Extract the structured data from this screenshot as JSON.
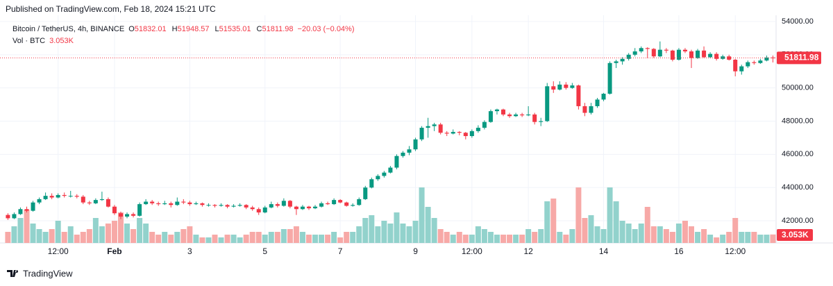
{
  "header": {
    "published": "Published on TradingView.com, Feb 18, 2024 15:21 UTC",
    "footer_brand": "TradingView"
  },
  "chart_data": {
    "type": "candlestick",
    "title": "Bitcoin / TetherUS, 4h, BINANCE",
    "ohlc_letters": [
      "O",
      "H",
      "L",
      "C"
    ],
    "change_label": "−20.03 (−0.04%)",
    "up_color": "#089981",
    "down_color": "#f23645",
    "vol_up_color": "#92d2cc",
    "vol_down_color": "#f7a9a7",
    "grid": true,
    "ylim": [
      40662,
      54376
    ],
    "yticks": [
      {
        "value": 42000,
        "label": "42000.00"
      },
      {
        "value": 44000,
        "label": "44000.00"
      },
      {
        "value": 46000,
        "label": "46000.00"
      },
      {
        "value": 48000,
        "label": "48000.00"
      },
      {
        "value": 50000,
        "label": "50000.00"
      },
      {
        "value": 52000,
        "label": "52000.00"
      },
      {
        "value": 54000,
        "label": "54000.00"
      }
    ],
    "categories": [
      null,
      null,
      null,
      null,
      null,
      null,
      null,
      null,
      "12:00",
      null,
      null,
      null,
      null,
      null,
      null,
      null,
      null,
      "Feb",
      null,
      null,
      null,
      null,
      null,
      null,
      null,
      null,
      null,
      null,
      null,
      "3",
      null,
      null,
      null,
      null,
      null,
      null,
      null,
      null,
      null,
      null,
      null,
      "5",
      null,
      null,
      null,
      null,
      null,
      null,
      null,
      null,
      null,
      null,
      null,
      "7",
      null,
      null,
      null,
      null,
      null,
      null,
      null,
      null,
      null,
      null,
      null,
      "9",
      null,
      null,
      null,
      null,
      null,
      null,
      null,
      null,
      "12:00",
      null,
      null,
      null,
      null,
      null,
      null,
      null,
      null,
      "12",
      null,
      null,
      null,
      null,
      null,
      null,
      null,
      null,
      null,
      null,
      null,
      "14",
      null,
      null,
      null,
      null,
      null,
      null,
      null,
      null,
      null,
      null,
      null,
      "16",
      null,
      null,
      null,
      null,
      null,
      null,
      null,
      null,
      "12:00",
      null,
      null,
      null,
      null,
      null,
      null
    ],
    "candles": [
      [
        42350,
        42450,
        42050,
        42150
      ],
      [
        42150,
        42500,
        42100,
        42400
      ],
      [
        42400,
        42800,
        42350,
        42700
      ],
      [
        42700,
        42850,
        42500,
        42600
      ],
      [
        42600,
        43200,
        42550,
        43100
      ],
      [
        43100,
        43400,
        43000,
        43300
      ],
      [
        43300,
        43700,
        43250,
        43500
      ],
      [
        43500,
        43650,
        43300,
        43400
      ],
      [
        43400,
        43650,
        43350,
        43550
      ],
      [
        43550,
        43700,
        43400,
        43500
      ],
      [
        43500,
        43800,
        43400,
        43500
      ],
      [
        43500,
        43600,
        43350,
        43450
      ],
      [
        43450,
        43550,
        43000,
        43100
      ],
      [
        43100,
        43200,
        42950,
        43050
      ],
      [
        43050,
        43350,
        43000,
        43250
      ],
      [
        43250,
        43750,
        43200,
        43300
      ],
      [
        43300,
        43400,
        42800,
        42850
      ],
      [
        42850,
        42950,
        42350,
        42450
      ],
      [
        42450,
        42550,
        42100,
        42250
      ],
      [
        42250,
        42500,
        42150,
        42400
      ],
      [
        42400,
        42500,
        42200,
        42300
      ],
      [
        42300,
        43100,
        42250,
        43000
      ],
      [
        43000,
        43300,
        42950,
        43150
      ],
      [
        43150,
        43250,
        42950,
        43050
      ],
      [
        43050,
        43150,
        42900,
        43000
      ],
      [
        43000,
        43200,
        42950,
        43050
      ],
      [
        43050,
        43150,
        42800,
        42950
      ],
      [
        42950,
        43400,
        42900,
        43150
      ],
      [
        43150,
        43300,
        43000,
        43100
      ],
      [
        43100,
        43200,
        42900,
        43000
      ],
      [
        43000,
        43150,
        42950,
        43050
      ],
      [
        43050,
        43100,
        42850,
        42950
      ],
      [
        42950,
        43050,
        42850,
        42950
      ],
      [
        42950,
        43000,
        42800,
        42900
      ],
      [
        42900,
        43050,
        42850,
        42950
      ],
      [
        42950,
        43000,
        42750,
        42850
      ],
      [
        42850,
        43000,
        42800,
        42900
      ],
      [
        42900,
        43050,
        42850,
        42950
      ],
      [
        42950,
        43000,
        42700,
        42800
      ],
      [
        42800,
        42900,
        42600,
        42700
      ],
      [
        42700,
        42800,
        42350,
        42500
      ],
      [
        42500,
        42900,
        42450,
        42800
      ],
      [
        42800,
        43150,
        42750,
        43000
      ],
      [
        43000,
        43100,
        42800,
        42900
      ],
      [
        42900,
        43350,
        42850,
        43200
      ],
      [
        43200,
        43250,
        42750,
        42850
      ],
      [
        42850,
        42900,
        42350,
        42700
      ],
      [
        42700,
        42950,
        42650,
        42850
      ],
      [
        42850,
        42900,
        42650,
        42750
      ],
      [
        42750,
        42950,
        42700,
        42850
      ],
      [
        42850,
        43150,
        42800,
        43050
      ],
      [
        43050,
        43150,
        42950,
        43000
      ],
      [
        43000,
        43350,
        42950,
        43250
      ],
      [
        43250,
        43300,
        43050,
        43100
      ],
      [
        43100,
        43150,
        42850,
        42900
      ],
      [
        42900,
        43050,
        42850,
        42950
      ],
      [
        42950,
        43400,
        42900,
        43300
      ],
      [
        43300,
        44100,
        43250,
        44000
      ],
      [
        44000,
        44600,
        43950,
        44500
      ],
      [
        44500,
        44800,
        44400,
        44700
      ],
      [
        44700,
        45000,
        44600,
        44900
      ],
      [
        44900,
        45300,
        44850,
        45200
      ],
      [
        45200,
        46000,
        45100,
        45900
      ],
      [
        45900,
        46200,
        45800,
        46100
      ],
      [
        46100,
        46500,
        45950,
        46300
      ],
      [
        46300,
        47000,
        46200,
        46900
      ],
      [
        46900,
        47700,
        46800,
        47600
      ],
      [
        47600,
        48200,
        47000,
        47700
      ],
      [
        47700,
        47900,
        47400,
        47800
      ],
      [
        47800,
        47900,
        47200,
        47300
      ],
      [
        47300,
        47400,
        47100,
        47250
      ],
      [
        47250,
        47500,
        47200,
        47350
      ],
      [
        47350,
        47400,
        47150,
        47300
      ],
      [
        47300,
        47350,
        46900,
        47100
      ],
      [
        47100,
        47500,
        47000,
        47400
      ],
      [
        47400,
        47750,
        47300,
        47600
      ],
      [
        47600,
        48050,
        47500,
        47950
      ],
      [
        47950,
        48700,
        47900,
        48600
      ],
      [
        48600,
        48750,
        48400,
        48700
      ],
      [
        48700,
        48750,
        48300,
        48400
      ],
      [
        48400,
        48500,
        48200,
        48300
      ],
      [
        48300,
        48500,
        48250,
        48400
      ],
      [
        48400,
        48500,
        48250,
        48350
      ],
      [
        48350,
        48900,
        48300,
        48400
      ],
      [
        48400,
        48500,
        47800,
        47950
      ],
      [
        47950,
        48200,
        47700,
        48000
      ],
      [
        48000,
        50300,
        47950,
        50100
      ],
      [
        50100,
        50400,
        49700,
        49900
      ],
      [
        49900,
        50400,
        49850,
        50200
      ],
      [
        50200,
        50350,
        49900,
        50000
      ],
      [
        50000,
        50300,
        49950,
        50150
      ],
      [
        50150,
        50200,
        48700,
        48900
      ],
      [
        48900,
        49100,
        48300,
        48500
      ],
      [
        48500,
        49100,
        48400,
        48900
      ],
      [
        48900,
        49400,
        48800,
        49300
      ],
      [
        49300,
        49700,
        49200,
        49650
      ],
      [
        49650,
        51600,
        49600,
        51500
      ],
      [
        51500,
        51700,
        51200,
        51600
      ],
      [
        51600,
        51850,
        51400,
        51750
      ],
      [
        51750,
        52100,
        51650,
        52000
      ],
      [
        52000,
        52400,
        51900,
        52200
      ],
      [
        52200,
        52500,
        52100,
        52400
      ],
      [
        52400,
        52450,
        51800,
        52350
      ],
      [
        52350,
        52400,
        51800,
        51900
      ],
      [
        51900,
        52800,
        51850,
        52300
      ],
      [
        52300,
        52400,
        52100,
        52250
      ],
      [
        52250,
        52300,
        51600,
        51700
      ],
      [
        51700,
        52400,
        51650,
        52300
      ],
      [
        52300,
        52400,
        52100,
        52200
      ],
      [
        52200,
        52300,
        51200,
        51800
      ],
      [
        51800,
        52350,
        51750,
        52250
      ],
      [
        52250,
        52500,
        51800,
        51850
      ],
      [
        51850,
        52150,
        51800,
        52050
      ],
      [
        52050,
        52150,
        51650,
        51750
      ],
      [
        51750,
        52000,
        51700,
        51900
      ],
      [
        51900,
        52000,
        51650,
        51700
      ],
      [
        51700,
        51750,
        50700,
        51000
      ],
      [
        51000,
        51400,
        50800,
        51300
      ],
      [
        51300,
        51650,
        51200,
        51550
      ],
      [
        51550,
        51650,
        51400,
        51500
      ],
      [
        51500,
        51750,
        51450,
        51650
      ],
      [
        51650,
        51950,
        51600,
        51832.01
      ],
      [
        51832.01,
        51948.57,
        51535.01,
        51811.98
      ]
    ],
    "volume": {
      "name": "Vol · BTC",
      "last_label": "3.053K",
      "ylim": [
        0,
        25
      ],
      "values": [
        4,
        6,
        9,
        12,
        7,
        5,
        4,
        5,
        8,
        4,
        6,
        3,
        4,
        5,
        9,
        6,
        7,
        8,
        11,
        7,
        5,
        9,
        7,
        4,
        3,
        4,
        3,
        4,
        5,
        6,
        3,
        2,
        2,
        3,
        2,
        3,
        3,
        2,
        3,
        4,
        4,
        3,
        4,
        4,
        5,
        5,
        6,
        4,
        3,
        3,
        3,
        3,
        4,
        2,
        4,
        4,
        6,
        9,
        10,
        6,
        8,
        7,
        11,
        7,
        6,
        8,
        20,
        13,
        9,
        5,
        4,
        3,
        4,
        3,
        3,
        6,
        5,
        4,
        3,
        3,
        3,
        3,
        3,
        5,
        4,
        5,
        15,
        16,
        4,
        3,
        5,
        20,
        9,
        10,
        6,
        5,
        20,
        15,
        8,
        7,
        5,
        7,
        13,
        6,
        6,
        5,
        4,
        7,
        8,
        6,
        4,
        5,
        3,
        2,
        3,
        4,
        9,
        4,
        4,
        4,
        3,
        3,
        3.053
      ]
    }
  }
}
